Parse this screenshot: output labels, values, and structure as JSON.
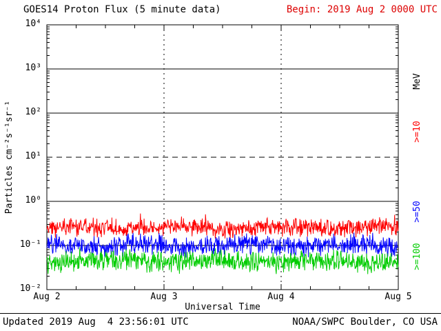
{
  "header": {
    "title": "GOES14 Proton Flux (5 minute data)",
    "begin": "Begin: 2019 Aug 2 0000 UTC",
    "begin_color": "#dd0000"
  },
  "footer": {
    "updated": "Updated 2019 Aug  4 23:56:01 UTC",
    "credit": "NOAA/SWPC Boulder, CO USA"
  },
  "chart_data": {
    "type": "line",
    "title": "GOES14 Proton Flux (5 minute data)",
    "xlabel": "Universal Time",
    "ylabel": "Particles cm⁻²s⁻¹sr⁻¹",
    "x_ticks": [
      "Aug 2",
      "Aug 3",
      "Aug 4",
      "Aug 5"
    ],
    "x_range_days": [
      0,
      3
    ],
    "x_minor_tick_interval_hours": 6,
    "y_scale": "log10",
    "ylim_log10": [
      -2,
      4
    ],
    "y_tick_labels": [
      "10⁴",
      "10³",
      "10²",
      "10¹",
      "10⁰",
      "10⁻¹",
      "10⁻²"
    ],
    "y_tick_exponents": [
      4,
      3,
      2,
      1,
      0,
      -1,
      -2
    ],
    "grid": {
      "solid_h_exponents": [
        3,
        2,
        0,
        -1
      ],
      "dashed_h_exponents": [
        1
      ],
      "dotted_v_days": [
        1,
        2
      ]
    },
    "right_axis_label": "MeV",
    "cadence_minutes": 5,
    "seed": 20190802,
    "series": [
      {
        "name": ">=10",
        "unit": "MeV",
        "color": "#ff0000",
        "baseline_log10": -0.6,
        "noise_amp_log10": 0.24,
        "spike_prob": 0.04,
        "spike_log10": 0.18,
        "approx_flux_range": [
          0.12,
          0.55
        ],
        "approx_mean_flux": 0.25
      },
      {
        "name": ">=50",
        "unit": "MeV",
        "color": "#0000ff",
        "baseline_log10": -1.0,
        "noise_amp_log10": 0.28,
        "spike_prob": 0.02,
        "spike_log10": 0.1,
        "approx_flux_range": [
          0.05,
          0.19
        ],
        "approx_mean_flux": 0.1
      },
      {
        "name": ">=100",
        "unit": "MeV",
        "color": "#00cc00",
        "baseline_log10": -1.35,
        "noise_amp_log10": 0.28,
        "spike_prob": 0.02,
        "spike_log10": 0.08,
        "approx_flux_range": [
          0.02,
          0.09
        ],
        "approx_mean_flux": 0.045
      }
    ]
  }
}
